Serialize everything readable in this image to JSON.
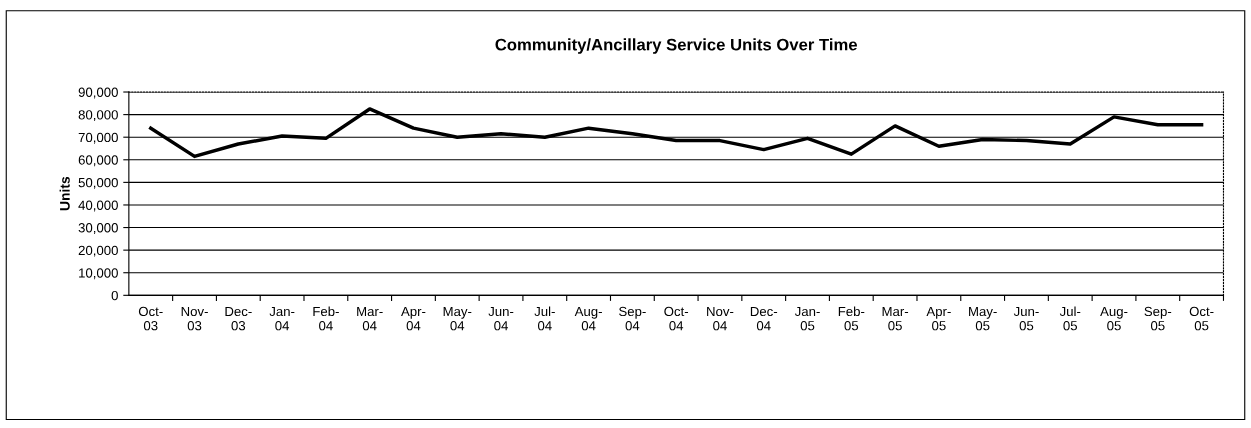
{
  "chart_data": {
    "type": "line",
    "title": "Community/Ancillary Service Units Over Time",
    "ylabel": "Units",
    "categories": [
      "Oct-\n03",
      "Nov-\n03",
      "Dec-\n03",
      "Jan-\n04",
      "Feb-\n04",
      "Mar-\n04",
      "Apr-\n04",
      "May-\n04",
      "Jun-\n04",
      "Jul-\n04",
      "Aug-\n04",
      "Sep-\n04",
      "Oct-\n04",
      "Nov-\n04",
      "Dec-\n04",
      "Jan-\n05",
      "Feb-\n05",
      "Mar-\n05",
      "Apr-\n05",
      "May-\n05",
      "Jun-\n05",
      "Jul-\n05",
      "Aug-\n05",
      "Sep-\n05",
      "Oct-\n05"
    ],
    "series": [
      {
        "color": "#000000",
        "values": [
          74000,
          61500,
          67000,
          70500,
          69500,
          82500,
          74000,
          70000,
          71500,
          70000,
          74000,
          71500,
          68500,
          68500,
          64500,
          69500,
          62500,
          75000,
          66000,
          69000,
          68500,
          67000,
          79000,
          75500,
          75500
        ]
      }
    ],
    "ylim": [
      0,
      90000
    ],
    "yticks": [
      {
        "value": 0,
        "label": "0"
      },
      {
        "value": 10000,
        "label": "10,000"
      },
      {
        "value": 20000,
        "label": "20,000"
      },
      {
        "value": 30000,
        "label": "30,000"
      },
      {
        "value": 40000,
        "label": "40,000"
      },
      {
        "value": 50000,
        "label": "50,000"
      },
      {
        "value": 60000,
        "label": "60,000"
      },
      {
        "value": 70000,
        "label": "70,000"
      },
      {
        "value": 80000,
        "label": "80,000"
      },
      {
        "value": 90000,
        "label": "90,000"
      }
    ],
    "grid": "y",
    "legend": false,
    "marker": "none",
    "line_style": "solid"
  }
}
